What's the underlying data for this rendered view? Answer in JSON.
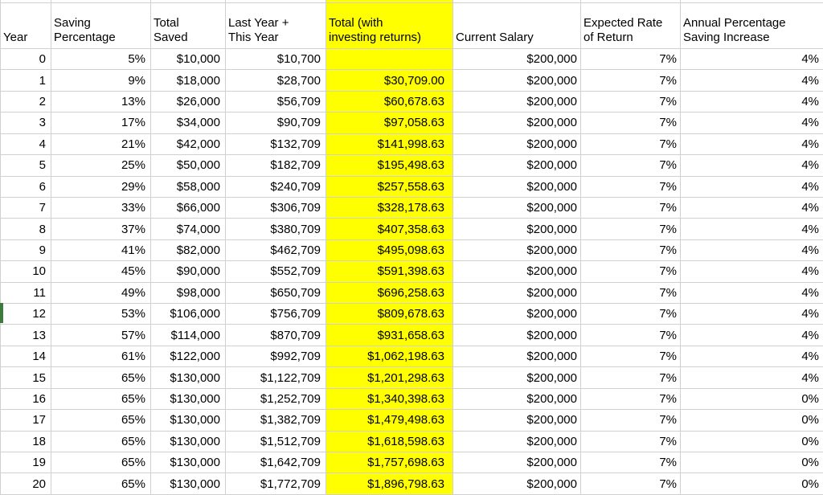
{
  "app": {
    "type": "spreadsheet",
    "description": "Retirement savings projection worksheet"
  },
  "colors": {
    "highlight_fill": "#FFFF00",
    "gridline": "#D0D0D0",
    "row_marker_green": "#3E7A3B",
    "text": "#000000",
    "background": "#FFFFFF"
  },
  "table": {
    "columns": [
      {
        "key": "year",
        "header": "Year",
        "header_lines": [
          "Year"
        ],
        "highlight": false
      },
      {
        "key": "saving_percentage",
        "header": "Saving Percentage",
        "header_lines": [
          "Saving",
          "Percentage"
        ],
        "highlight": false
      },
      {
        "key": "total_saved",
        "header": "Total Saved",
        "header_lines": [
          "Total",
          "Saved"
        ],
        "highlight": false
      },
      {
        "key": "last_plus_this",
        "header": "Last Year + This Year",
        "header_lines": [
          "Last Year +",
          "This Year"
        ],
        "highlight": false
      },
      {
        "key": "total_with_returns",
        "header": "Total (with investing returns)",
        "header_lines": [
          "Total (with",
          "investing returns)"
        ],
        "highlight": true
      },
      {
        "key": "current_salary",
        "header": "Current Salary",
        "header_lines": [
          "Current Salary"
        ],
        "highlight": false
      },
      {
        "key": "expected_rate",
        "header": "Expected Rate of Return",
        "header_lines": [
          "Expected Rate",
          "of Return"
        ],
        "highlight": false
      },
      {
        "key": "annual_increase",
        "header": "Annual Percentage Saving Increase",
        "header_lines": [
          "Annual Percentage",
          "Saving Increase"
        ],
        "highlight": false
      }
    ],
    "rows": [
      [
        "0",
        "5%",
        "$10,000",
        "$10,700",
        "",
        "$200,000",
        "7%",
        "4%"
      ],
      [
        "1",
        "9%",
        "$18,000",
        "$28,700",
        "$30,709.00",
        "$200,000",
        "7%",
        "4%"
      ],
      [
        "2",
        "13%",
        "$26,000",
        "$56,709",
        "$60,678.63",
        "$200,000",
        "7%",
        "4%"
      ],
      [
        "3",
        "17%",
        "$34,000",
        "$90,709",
        "$97,058.63",
        "$200,000",
        "7%",
        "4%"
      ],
      [
        "4",
        "21%",
        "$42,000",
        "$132,709",
        "$141,998.63",
        "$200,000",
        "7%",
        "4%"
      ],
      [
        "5",
        "25%",
        "$50,000",
        "$182,709",
        "$195,498.63",
        "$200,000",
        "7%",
        "4%"
      ],
      [
        "6",
        "29%",
        "$58,000",
        "$240,709",
        "$257,558.63",
        "$200,000",
        "7%",
        "4%"
      ],
      [
        "7",
        "33%",
        "$66,000",
        "$306,709",
        "$328,178.63",
        "$200,000",
        "7%",
        "4%"
      ],
      [
        "8",
        "37%",
        "$74,000",
        "$380,709",
        "$407,358.63",
        "$200,000",
        "7%",
        "4%"
      ],
      [
        "9",
        "41%",
        "$82,000",
        "$462,709",
        "$495,098.63",
        "$200,000",
        "7%",
        "4%"
      ],
      [
        "10",
        "45%",
        "$90,000",
        "$552,709",
        "$591,398.63",
        "$200,000",
        "7%",
        "4%"
      ],
      [
        "11",
        "49%",
        "$98,000",
        "$650,709",
        "$696,258.63",
        "$200,000",
        "7%",
        "4%"
      ],
      [
        "12",
        "53%",
        "$106,000",
        "$756,709",
        "$809,678.63",
        "$200,000",
        "7%",
        "4%"
      ],
      [
        "13",
        "57%",
        "$114,000",
        "$870,709",
        "$931,658.63",
        "$200,000",
        "7%",
        "4%"
      ],
      [
        "14",
        "61%",
        "$122,000",
        "$992,709",
        "$1,062,198.63",
        "$200,000",
        "7%",
        "4%"
      ],
      [
        "15",
        "65%",
        "$130,000",
        "$1,122,709",
        "$1,201,298.63",
        "$200,000",
        "7%",
        "4%"
      ],
      [
        "16",
        "65%",
        "$130,000",
        "$1,252,709",
        "$1,340,398.63",
        "$200,000",
        "7%",
        "0%"
      ],
      [
        "17",
        "65%",
        "$130,000",
        "$1,382,709",
        "$1,479,498.63",
        "$200,000",
        "7%",
        "0%"
      ],
      [
        "18",
        "65%",
        "$130,000",
        "$1,512,709",
        "$1,618,598.63",
        "$200,000",
        "7%",
        "0%"
      ],
      [
        "19",
        "65%",
        "$130,000",
        "$1,642,709",
        "$1,757,698.63",
        "$200,000",
        "7%",
        "0%"
      ],
      [
        "20",
        "65%",
        "$130,000",
        "$1,772,709",
        "$1,896,798.63",
        "$200,000",
        "7%",
        "0%"
      ]
    ],
    "active_row_index": 12
  }
}
